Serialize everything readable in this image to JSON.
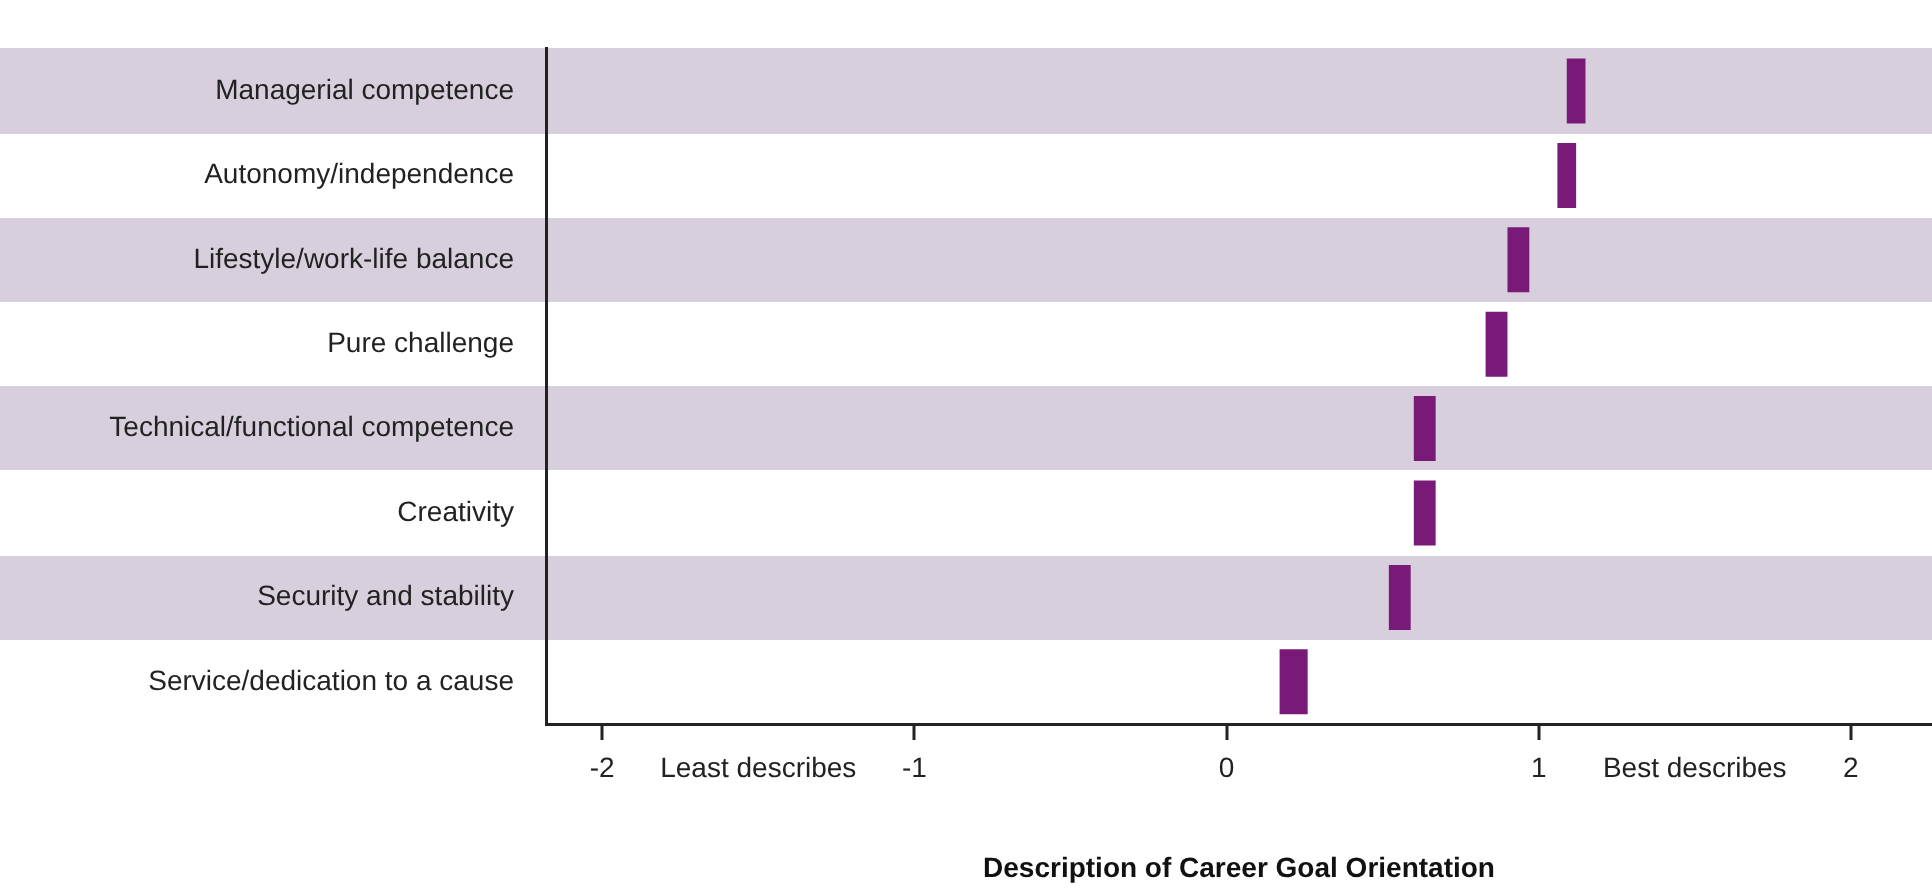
{
  "chart_data": {
    "type": "bar",
    "orientation": "horizontal",
    "xlabel": "Description of Career Goal Orientation",
    "categories": [
      "Managerial competence",
      "Autonomy/independence",
      "Lifestyle/work-life balance",
      "Pure challenge",
      "Technical/functional competence",
      "Creativity",
      "Security and stability",
      "Service/dedication to a cause"
    ],
    "base": [
      1.09,
      1.06,
      0.9,
      0.83,
      0.6,
      0.6,
      0.52,
      0.17
    ],
    "values": [
      0.06,
      0.06,
      0.07,
      0.07,
      0.07,
      0.07,
      0.07,
      0.09
    ],
    "color": "#7a1a78",
    "xlim": [
      -2.18,
      2.26
    ],
    "xticks": [
      -2,
      {
        "value": -1.5,
        "label": "Least describes"
      },
      -1,
      0,
      1,
      {
        "value": 1.5,
        "label": "Best describes"
      },
      2
    ],
    "grid": false,
    "legend": false
  }
}
